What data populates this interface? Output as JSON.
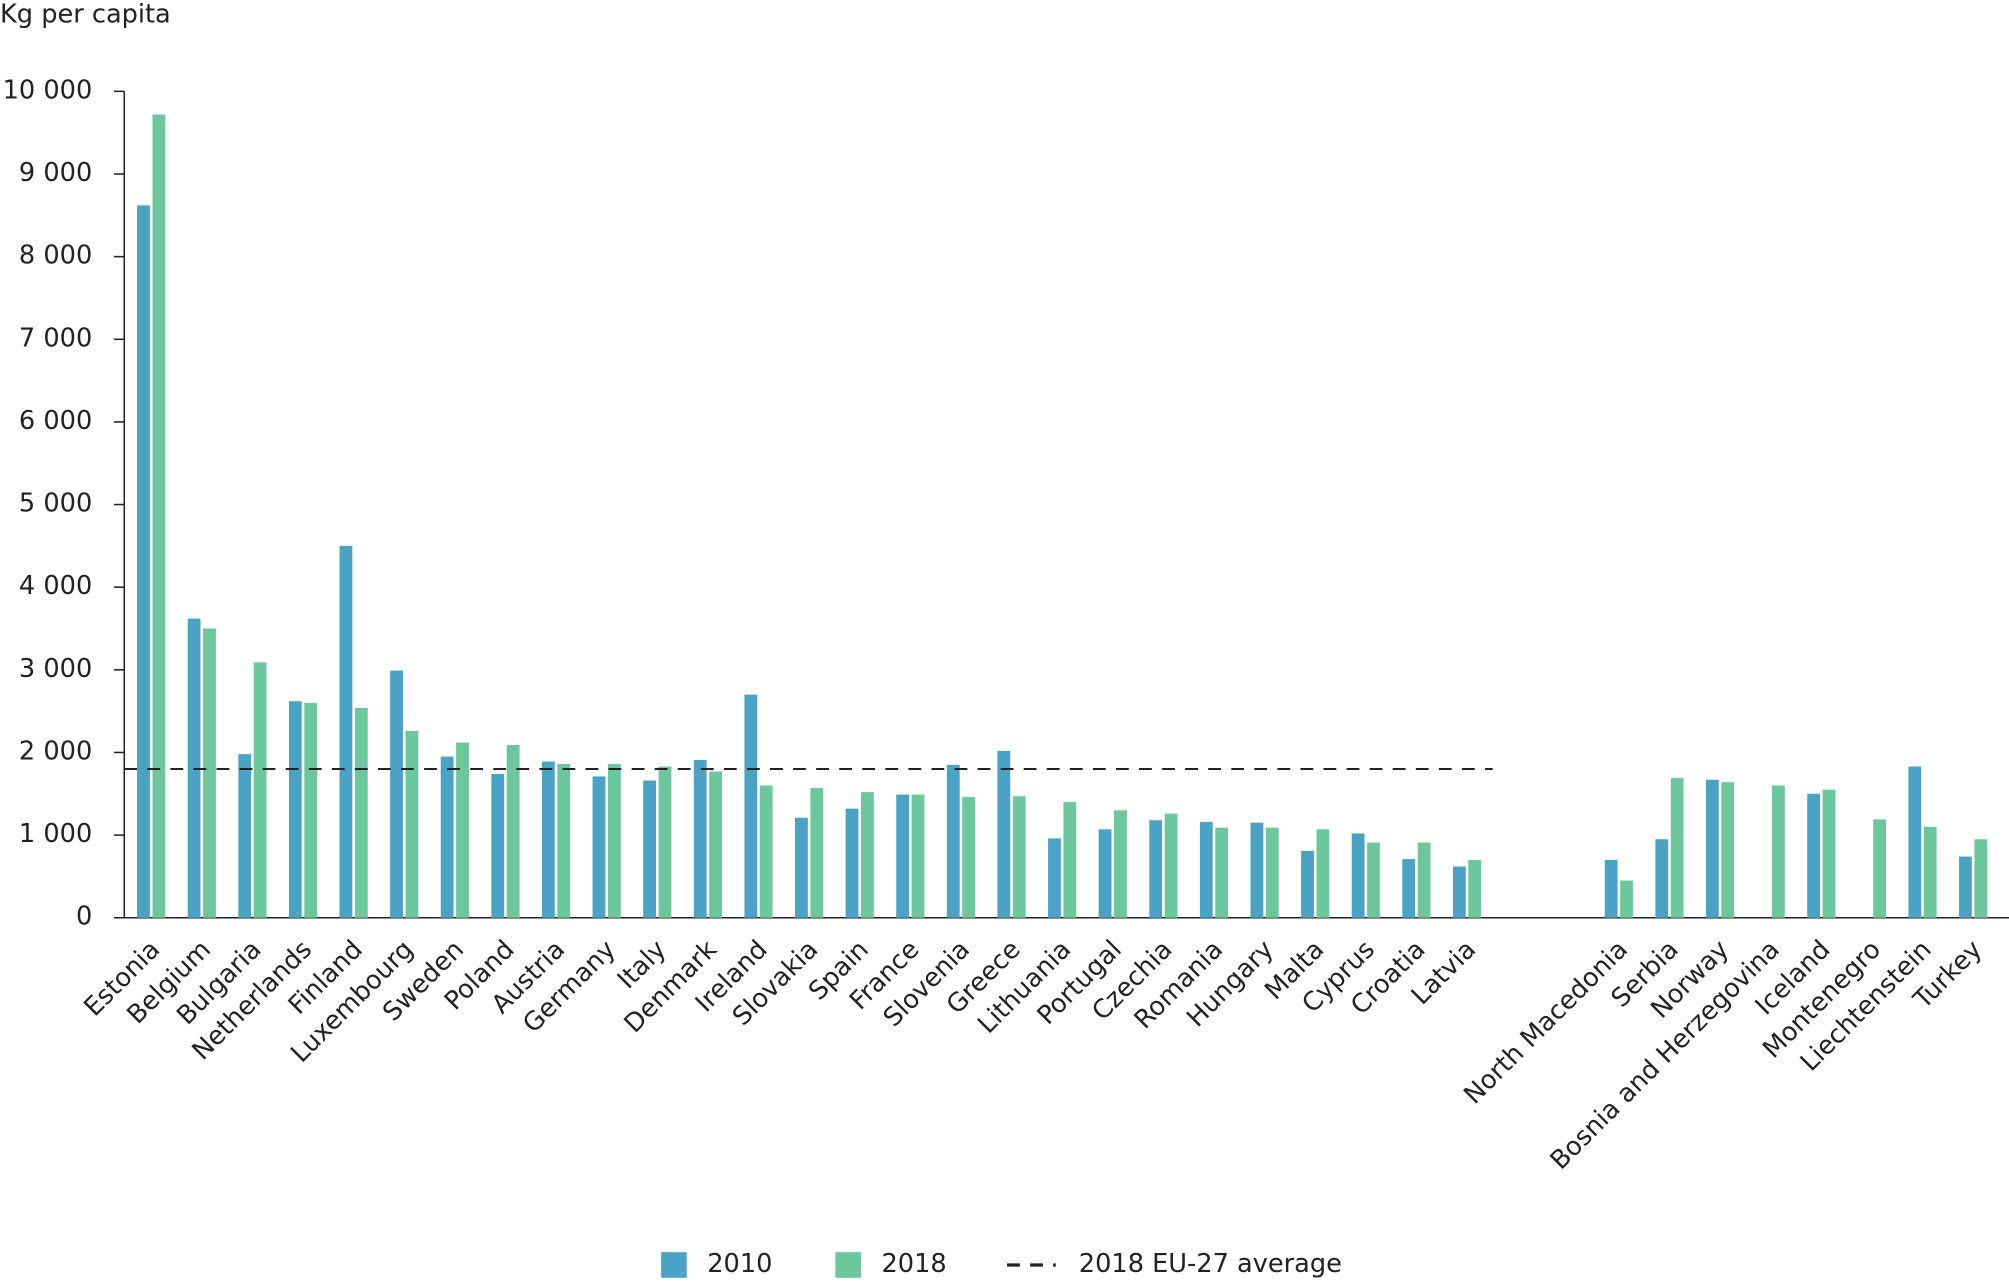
{
  "chart_data": {
    "type": "bar",
    "y_label": "Kg per capita",
    "categories": [
      "Estonia",
      "Belgium",
      "Bulgaria",
      "Netherlands",
      "Finland",
      "Luxembourg",
      "Sweden",
      "Poland",
      "Austria",
      "Germany",
      "Italy",
      "Denmark",
      "Ireland",
      "Slovakia",
      "Spain",
      "France",
      "Slovenia",
      "Greece",
      "Lithuania",
      "Portugal",
      "Czechia",
      "Romania",
      "Hungary",
      "Malta",
      "Cyprus",
      "Croatia",
      "Latvia",
      null,
      null,
      "North Macedonia",
      "Serbia",
      "Norway",
      "Bosnia and Herzegovina",
      "Iceland",
      "Montenegro",
      "Liechtenstein",
      "Turkey"
    ],
    "series": [
      {
        "name": "2010",
        "color": "#4aa3c4",
        "values": [
          8620,
          3620,
          1980,
          2620,
          4500,
          2990,
          1950,
          1740,
          1890,
          1710,
          1660,
          1910,
          2700,
          1210,
          1320,
          1490,
          1850,
          2020,
          960,
          1070,
          1180,
          1160,
          1150,
          810,
          1020,
          710,
          620,
          null,
          null,
          700,
          950,
          1670,
          null,
          1500,
          null,
          1830,
          740
        ]
      },
      {
        "name": "2018",
        "color": "#6cc79d",
        "values": [
          9720,
          3500,
          3090,
          2600,
          2540,
          2260,
          2120,
          2090,
          1860,
          1860,
          1830,
          1770,
          1600,
          1570,
          1520,
          1490,
          1460,
          1470,
          1400,
          1300,
          1260,
          1090,
          1090,
          1070,
          910,
          910,
          700,
          null,
          null,
          450,
          1690,
          1640,
          1600,
          1550,
          1190,
          1100,
          950
        ]
      }
    ],
    "average": {
      "name": "2018 EU-27 average",
      "value": 1800
    },
    "ylim": [
      0,
      10000
    ],
    "yticks": [
      0,
      {
        "value": 1000,
        "label": "1 000"
      },
      {
        "value": 2000,
        "label": "2 000"
      },
      {
        "value": 3000,
        "label": "3 000"
      },
      {
        "value": 4000,
        "label": "4 000"
      },
      {
        "value": 5000,
        "label": "5 000"
      },
      {
        "value": 6000,
        "label": "6 000"
      },
      {
        "value": 7000,
        "label": "7 000"
      },
      {
        "value": 8000,
        "label": "8 000"
      },
      {
        "value": 9000,
        "label": "9 000"
      },
      {
        "value": 10000,
        "label": "10 000"
      }
    ],
    "legend": "bottom"
  }
}
